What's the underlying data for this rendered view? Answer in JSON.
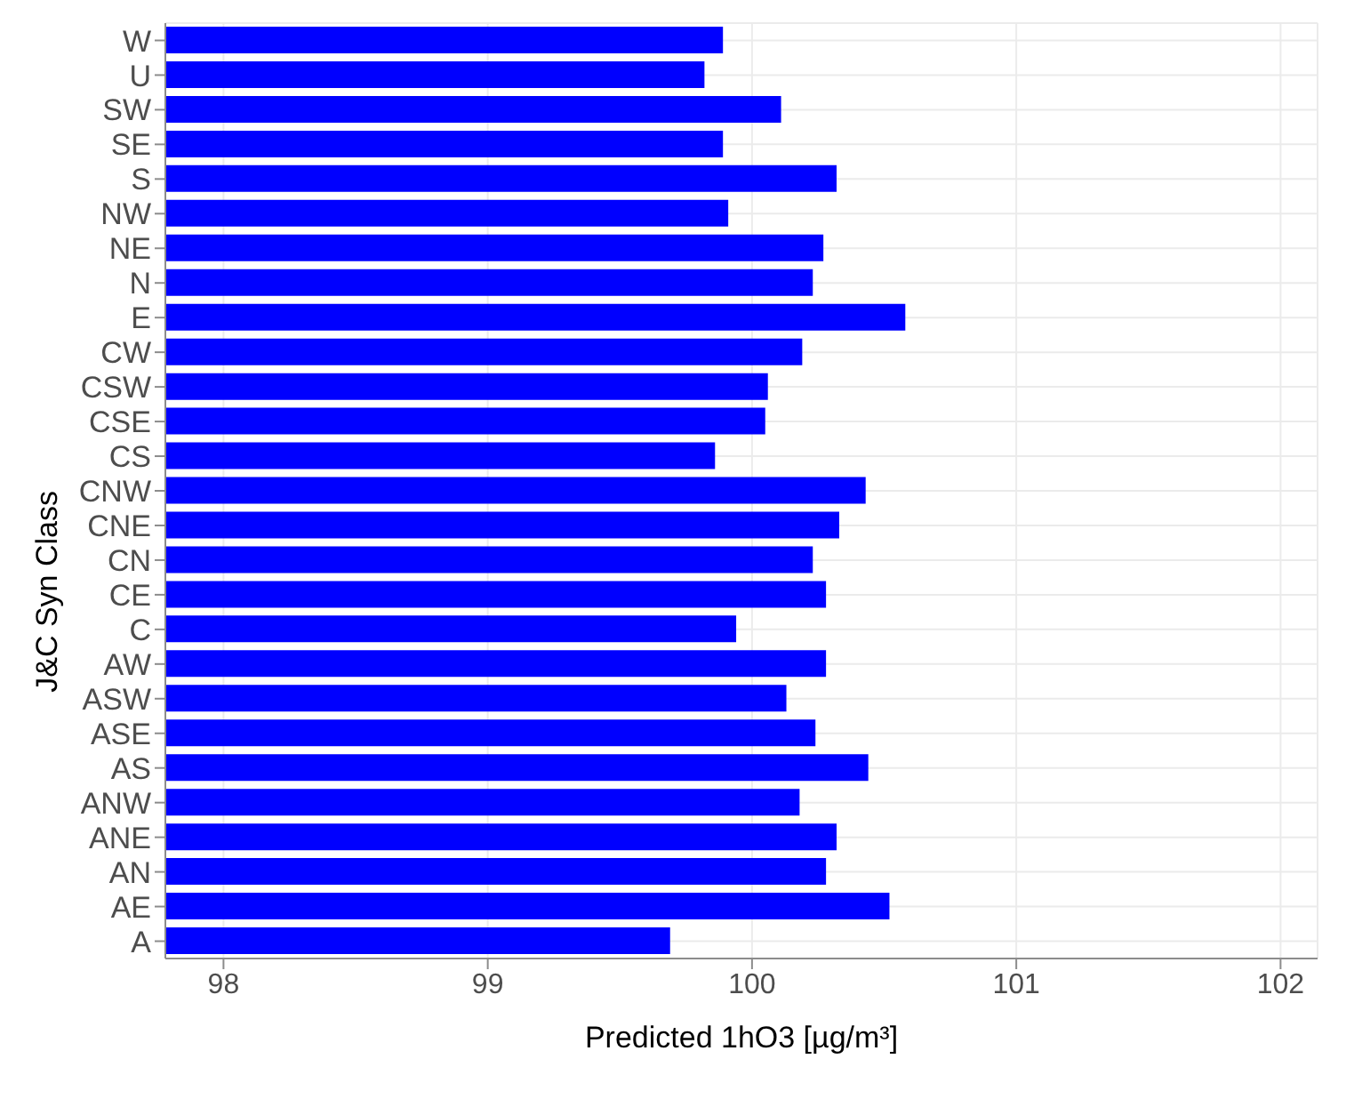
{
  "chart_data": {
    "type": "bar",
    "orientation": "horizontal",
    "xlabel": "Predicted 1hO3 [µg/m³]",
    "ylabel": "J&C Syn Class",
    "categories": [
      "W",
      "U",
      "SW",
      "SE",
      "S",
      "NW",
      "NE",
      "N",
      "E",
      "CW",
      "CSW",
      "CSE",
      "CS",
      "CNW",
      "CNE",
      "CN",
      "CE",
      "C",
      "AW",
      "ASW",
      "ASE",
      "AS",
      "ANW",
      "ANE",
      "AN",
      "AE",
      "A"
    ],
    "values": [
      99.89,
      99.82,
      100.11,
      99.89,
      100.32,
      99.91,
      100.27,
      100.23,
      100.58,
      100.19,
      100.06,
      100.05,
      99.86,
      100.43,
      100.33,
      100.23,
      100.28,
      99.94,
      100.28,
      100.13,
      100.24,
      100.44,
      100.18,
      100.32,
      100.28,
      100.52,
      99.69
    ],
    "color": "#0000ff",
    "xlim": [
      97.78,
      102.14
    ],
    "xticks": [
      98,
      99,
      100,
      101,
      102
    ],
    "grid": true
  }
}
